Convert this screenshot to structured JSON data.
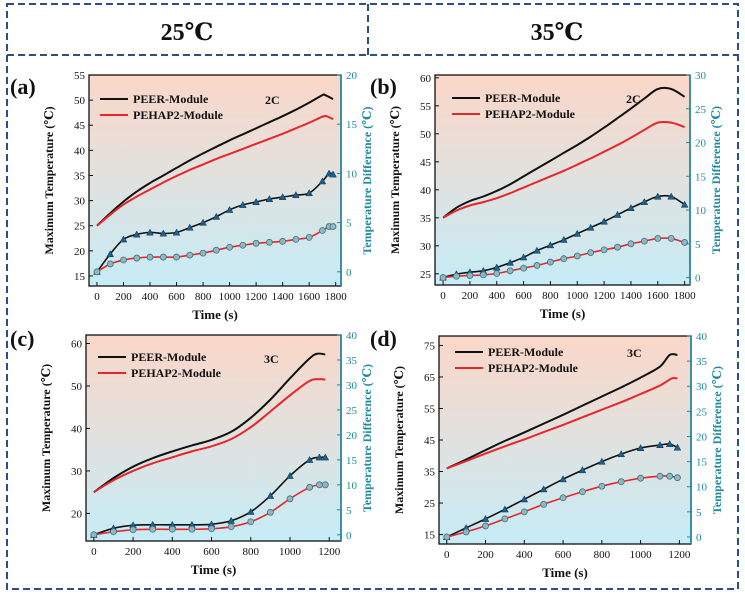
{
  "headers": [
    "25℃",
    "35℃"
  ],
  "colors": {
    "frame": "#2e4f86",
    "peer": "#111111",
    "pehap2": "#e8262a",
    "diff_axis": "#1f8aa0",
    "marker_tri": "#1f5f8a",
    "marker_circ_fill": "#8ab8c4",
    "bg_top": "#fbd7c8",
    "bg_bottom": "#c6ecf6"
  },
  "chart_data": [
    {
      "label": "(a)",
      "type": "line",
      "rate": "2C",
      "xlabel": "Time (s)",
      "ylabel_left": "Maximum Temperature (℃)",
      "ylabel_right": "Temperature Difference (℃)",
      "xlim": [
        -60,
        1840
      ],
      "ylim_left": [
        13,
        55
      ],
      "ylim_right": [
        -1.44,
        20
      ],
      "xticks": [
        0,
        200,
        400,
        600,
        800,
        1000,
        1200,
        1400,
        1600,
        1800
      ],
      "yticks_left": [
        15,
        20,
        25,
        30,
        35,
        40,
        45,
        50,
        55
      ],
      "yticks_right": [
        0,
        5,
        10,
        15,
        20
      ],
      "legend": [
        "PEER-Module",
        "PEHAP2-Module"
      ],
      "series_max": [
        {
          "name": "PEER-Module",
          "x": [
            0,
            100,
            200,
            300,
            400,
            500,
            600,
            700,
            800,
            900,
            1000,
            1100,
            1200,
            1300,
            1400,
            1500,
            1600,
            1700,
            1720,
            1780
          ],
          "values": [
            25,
            27.5,
            29.8,
            31.8,
            33.5,
            35,
            36.5,
            38,
            39.4,
            40.7,
            42,
            43.2,
            44.4,
            45.6,
            46.8,
            48.1,
            49.5,
            51,
            51,
            50.2
          ]
        },
        {
          "name": "PEHAP2-Module",
          "x": [
            0,
            100,
            200,
            300,
            400,
            500,
            600,
            700,
            800,
            900,
            1000,
            1100,
            1200,
            1300,
            1400,
            1500,
            1600,
            1700,
            1730,
            1780
          ],
          "values": [
            25,
            27.2,
            29.2,
            30.8,
            32.2,
            33.6,
            34.9,
            36.1,
            37.2,
            38.3,
            39.3,
            40.3,
            41.3,
            42.3,
            43.3,
            44.4,
            45.5,
            46.7,
            46.8,
            46.2
          ]
        }
      ],
      "series_diff": [
        {
          "name": "PEER-Module",
          "x": [
            0,
            100,
            200,
            300,
            400,
            500,
            600,
            700,
            800,
            900,
            1000,
            1100,
            1200,
            1300,
            1400,
            1500,
            1600,
            1700,
            1750,
            1780
          ],
          "values": [
            0,
            1.8,
            3.3,
            3.8,
            4,
            3.9,
            4,
            4.5,
            5,
            5.6,
            6.3,
            6.8,
            7.1,
            7.4,
            7.6,
            7.8,
            8,
            9.2,
            10,
            9.9
          ]
        },
        {
          "name": "PEHAP2-Module",
          "x": [
            0,
            100,
            200,
            300,
            400,
            500,
            600,
            700,
            800,
            900,
            1000,
            1100,
            1200,
            1300,
            1400,
            1500,
            1600,
            1700,
            1750,
            1780
          ],
          "values": [
            0,
            0.8,
            1.2,
            1.4,
            1.5,
            1.5,
            1.5,
            1.7,
            1.9,
            2.2,
            2.5,
            2.7,
            2.9,
            3,
            3.1,
            3.3,
            3.5,
            4.2,
            4.6,
            4.6
          ]
        }
      ]
    },
    {
      "label": "(b)",
      "type": "line",
      "rate": "2C",
      "xlabel": "Time (s)",
      "ylabel_left": "Maximum Temperature (℃)",
      "ylabel_right": "Temperature Difference (℃)",
      "xlim": [
        -60,
        1840
      ],
      "ylim_left": [
        23,
        60.5
      ],
      "ylim_right": [
        -1.1,
        30
      ],
      "xticks": [
        0,
        200,
        400,
        600,
        800,
        1000,
        1200,
        1400,
        1600,
        1800
      ],
      "yticks_left": [
        25,
        30,
        35,
        40,
        45,
        50,
        55,
        60
      ],
      "yticks_right": [
        0,
        5,
        10,
        15,
        20,
        25,
        30
      ],
      "legend": [
        "PEER-Module",
        "PEHAP2-Module"
      ],
      "series_max": [
        {
          "name": "PEER-Module",
          "x": [
            0,
            100,
            200,
            300,
            400,
            500,
            600,
            700,
            800,
            900,
            1000,
            1100,
            1200,
            1300,
            1400,
            1500,
            1600,
            1700,
            1800
          ],
          "values": [
            35,
            36.8,
            38,
            38.8,
            39.8,
            41,
            42.4,
            43.8,
            45.2,
            46.6,
            48,
            49.5,
            51.1,
            52.8,
            54.5,
            56.3,
            58,
            58,
            56.6
          ]
        },
        {
          "name": "PEHAP2-Module",
          "x": [
            0,
            100,
            200,
            300,
            400,
            500,
            600,
            700,
            800,
            900,
            1000,
            1100,
            1200,
            1300,
            1400,
            1500,
            1600,
            1700,
            1800
          ],
          "values": [
            35,
            36.3,
            37.2,
            37.8,
            38.5,
            39.4,
            40.4,
            41.4,
            42.4,
            43.4,
            44.5,
            45.6,
            46.8,
            48,
            49.3,
            50.7,
            52,
            52,
            51.2
          ]
        }
      ],
      "series_diff": [
        {
          "name": "PEER-Module",
          "x": [
            0,
            100,
            200,
            300,
            400,
            500,
            600,
            700,
            800,
            900,
            1000,
            1100,
            1200,
            1300,
            1400,
            1500,
            1600,
            1700,
            1800
          ],
          "values": [
            0,
            0.5,
            0.8,
            1,
            1.5,
            2.2,
            3,
            4,
            4.8,
            5.6,
            6.5,
            7.4,
            8.3,
            9.3,
            10.3,
            11.2,
            12,
            12,
            10.8
          ]
        },
        {
          "name": "PEHAP2-Module",
          "x": [
            0,
            100,
            200,
            300,
            400,
            500,
            600,
            700,
            800,
            900,
            1000,
            1100,
            1200,
            1300,
            1400,
            1500,
            1600,
            1700,
            1800
          ],
          "values": [
            0,
            0.2,
            0.3,
            0.4,
            0.6,
            1,
            1.4,
            1.8,
            2.3,
            2.8,
            3.2,
            3.7,
            4.1,
            4.5,
            5,
            5.4,
            5.8,
            5.8,
            5.2
          ]
        }
      ]
    },
    {
      "label": "(c)",
      "type": "line",
      "rate": "3C",
      "xlabel": "Time (s)",
      "ylabel_left": "Maximum Temperature (℃)",
      "ylabel_right": "Temperature Difference (℃)",
      "xlim": [
        -40,
        1260
      ],
      "ylim_left": [
        13.5,
        62
      ],
      "ylim_right": [
        -1.25,
        40
      ],
      "xticks": [
        0,
        200,
        400,
        600,
        800,
        1000,
        1200
      ],
      "yticks_left": [
        20,
        30,
        40,
        50,
        60
      ],
      "yticks_right": [
        0,
        5,
        10,
        15,
        20,
        25,
        30,
        35,
        40
      ],
      "legend": [
        "PEER-Module",
        "PEHAP2-Module"
      ],
      "series_max": [
        {
          "name": "PEER-Module",
          "x": [
            0,
            100,
            200,
            300,
            400,
            500,
            600,
            700,
            800,
            900,
            1000,
            1100,
            1140,
            1180
          ],
          "values": [
            25,
            28.3,
            31,
            33,
            34.6,
            36,
            37.3,
            39.2,
            42.5,
            46.8,
            51.8,
            56.5,
            57.6,
            57.4
          ]
        },
        {
          "name": "PEHAP2-Module",
          "x": [
            0,
            100,
            200,
            300,
            400,
            500,
            600,
            700,
            800,
            900,
            1000,
            1100,
            1150,
            1180
          ],
          "values": [
            25,
            27.8,
            30,
            31.8,
            33.2,
            34.6,
            35.8,
            37.5,
            40.3,
            44,
            47.8,
            51.2,
            51.6,
            51.5
          ]
        }
      ],
      "series_diff": [
        {
          "name": "PEER-Module",
          "x": [
            0,
            100,
            200,
            300,
            400,
            500,
            600,
            700,
            800,
            900,
            1000,
            1100,
            1150,
            1180
          ],
          "values": [
            0,
            1.3,
            1.9,
            2,
            2,
            2,
            2.1,
            2.8,
            4.6,
            7.8,
            11.8,
            15,
            15.5,
            15.5
          ]
        },
        {
          "name": "PEHAP2-Module",
          "x": [
            0,
            100,
            200,
            300,
            400,
            500,
            600,
            700,
            800,
            900,
            1000,
            1100,
            1150,
            1180
          ],
          "values": [
            0,
            0.6,
            1,
            1.1,
            1.1,
            1.1,
            1.2,
            1.6,
            2.6,
            4.5,
            7.2,
            9.5,
            10,
            10
          ]
        }
      ]
    },
    {
      "label": "(d)",
      "type": "line",
      "rate": "3C",
      "xlabel": "Time (s)",
      "ylabel_left": "Maximum Temperature (℃)",
      "ylabel_right": "Temperature Difference (℃)",
      "xlim": [
        -40,
        1260
      ],
      "ylim_left": [
        12,
        78
      ],
      "ylim_right": [
        -1.4,
        40
      ],
      "xticks": [
        0,
        200,
        400,
        600,
        800,
        1000,
        1200
      ],
      "yticks_left": [
        15,
        25,
        35,
        45,
        55,
        65,
        75
      ],
      "yticks_right": [
        0,
        5,
        10,
        15,
        20,
        25,
        30,
        35,
        40
      ],
      "legend": [
        "PEER-Module",
        "PEHAP2-Module"
      ],
      "series_max": [
        {
          "name": "PEER-Module",
          "x": [
            0,
            100,
            200,
            300,
            400,
            500,
            600,
            700,
            800,
            900,
            1000,
            1100,
            1150,
            1190
          ],
          "values": [
            36,
            38.8,
            41.8,
            44.7,
            47.4,
            50.2,
            53,
            55.9,
            58.8,
            61.7,
            64.8,
            68.3,
            72,
            72
          ]
        },
        {
          "name": "PEHAP2-Module",
          "x": [
            0,
            100,
            200,
            300,
            400,
            500,
            600,
            700,
            800,
            900,
            1000,
            1100,
            1160,
            1190
          ],
          "values": [
            36,
            38.3,
            40.7,
            43,
            45.2,
            47.5,
            49.8,
            52.2,
            54.6,
            57,
            59.6,
            62.3,
            64.5,
            64.5
          ]
        }
      ],
      "series_diff": [
        {
          "name": "PEER-Module",
          "x": [
            0,
            100,
            200,
            300,
            400,
            500,
            600,
            700,
            800,
            900,
            1000,
            1100,
            1150,
            1190
          ],
          "values": [
            0,
            1.8,
            3.6,
            5.5,
            7.5,
            9.5,
            11.5,
            13.3,
            15,
            16.5,
            17.7,
            18.3,
            18.5,
            17.8
          ]
        },
        {
          "name": "PEHAP2-Module",
          "x": [
            0,
            100,
            200,
            300,
            400,
            500,
            600,
            700,
            800,
            900,
            1000,
            1100,
            1150,
            1190
          ],
          "values": [
            0,
            1,
            2.2,
            3.6,
            5,
            6.5,
            7.8,
            9,
            10.1,
            11,
            11.7,
            12.1,
            12.1,
            11.8
          ]
        }
      ]
    }
  ]
}
